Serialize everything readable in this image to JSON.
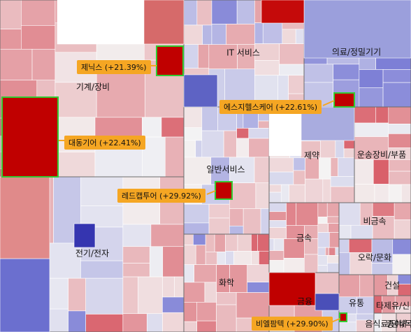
{
  "chart_data": {
    "type": "treemap",
    "title": "",
    "colors": {
      "up_strong": "#c00000",
      "down_strong": "#3333aa",
      "neutral": "#f4f4f4",
      "highlight_border": "#33cc33",
      "callout_bg": "#f5a623"
    },
    "sectors": [
      {
        "name": "기계/장비",
        "trend": 0.35
      },
      {
        "name": "전기/전자",
        "trend": 0.15
      },
      {
        "name": "IT 서비스",
        "trend": 0.0
      },
      {
        "name": "일반서비스",
        "trend": -0.05
      },
      {
        "name": "화학",
        "trend": 0.25
      },
      {
        "name": "의료/정밀기기",
        "trend": -0.55
      },
      {
        "name": "제약",
        "trend": 0.05
      },
      {
        "name": "운송장비/부품",
        "trend": 0.45
      },
      {
        "name": "금속",
        "trend": 0.3
      },
      {
        "name": "비금속",
        "trend": 0.3
      },
      {
        "name": "오락/문화",
        "trend": 0.0
      },
      {
        "name": "금융",
        "trend": 0.2
      },
      {
        "name": "유통",
        "trend": 0.2
      },
      {
        "name": "건설",
        "trend": 0.35
      },
      {
        "name": "타제유/신",
        "trend": 0.1
      },
      {
        "name": "음식료/담배",
        "trend": 0.1
      },
      {
        "name": "종이/목재",
        "trend": 0.1
      }
    ],
    "highlights": [
      {
        "name": "제닉스",
        "change": "+21.39%",
        "label": "제닉스 (+21.39%)"
      },
      {
        "name": "대동기어",
        "change": "+22.41%",
        "label": "대동기어 (+22.41%)"
      },
      {
        "name": "에스지헬스케어",
        "change": "+22.61%",
        "label": "에스지헬스케어 (+22.61%)"
      },
      {
        "name": "레드캡투어",
        "change": "+29.92%",
        "label": "레드캡투어 (+29.92%)"
      },
      {
        "name": "비엘팜텍",
        "change": "+29.90%",
        "label": "비엘팜텍 (+29.90%)"
      }
    ]
  }
}
